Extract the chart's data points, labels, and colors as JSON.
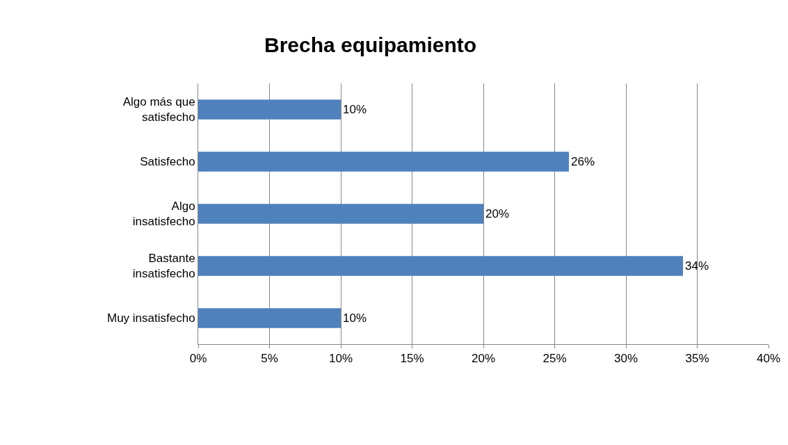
{
  "chart_data": {
    "type": "bar",
    "orientation": "horizontal",
    "title": "Brecha equipamiento",
    "categories": [
      "Algo más que satisfecho",
      "Satisfecho",
      "Algo insatisfecho",
      "Bastante insatisfecho",
      "Muy insatisfecho"
    ],
    "values": [
      10,
      26,
      20,
      34,
      10
    ],
    "value_labels": [
      "10%",
      "26%",
      "20%",
      "34%",
      "10%"
    ],
    "color": "#4f81bd",
    "xlim": [
      0,
      40
    ],
    "xticks": [
      {
        "value": 0,
        "label": "0%"
      },
      {
        "value": 5,
        "label": "5%"
      },
      {
        "value": 10,
        "label": "10%"
      },
      {
        "value": 15,
        "label": "15%"
      },
      {
        "value": 20,
        "label": "20%"
      },
      {
        "value": 25,
        "label": "25%"
      },
      {
        "value": 30,
        "label": "30%"
      },
      {
        "value": 35,
        "label": "35%"
      },
      {
        "value": 40,
        "label": "40%"
      }
    ],
    "grid": "x",
    "legend": false
  }
}
